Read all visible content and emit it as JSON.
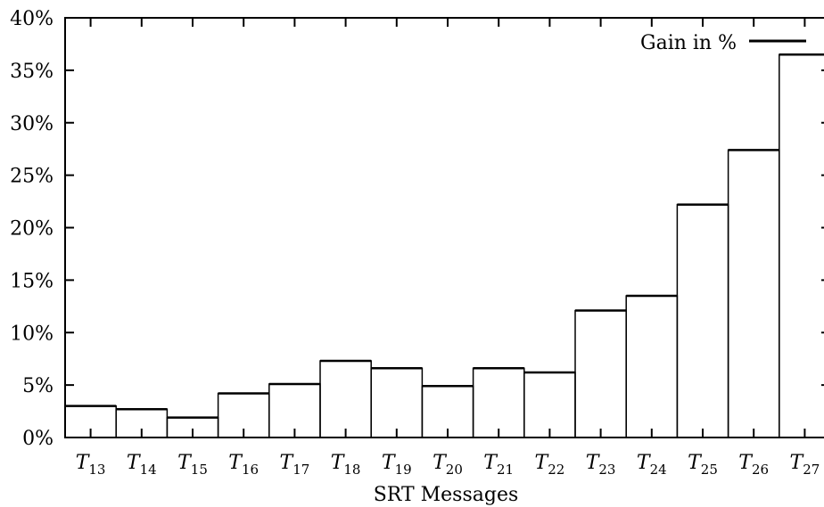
{
  "chart_data": {
    "type": "bar",
    "categories": [
      "T13",
      "T14",
      "T15",
      "T16",
      "T17",
      "T18",
      "T19",
      "T20",
      "T21",
      "T22",
      "T23",
      "T24",
      "T25",
      "T26",
      "T27"
    ],
    "category_labels": [
      {
        "base": "T",
        "sub": "13"
      },
      {
        "base": "T",
        "sub": "14"
      },
      {
        "base": "T",
        "sub": "15"
      },
      {
        "base": "T",
        "sub": "16"
      },
      {
        "base": "T",
        "sub": "17"
      },
      {
        "base": "T",
        "sub": "18"
      },
      {
        "base": "T",
        "sub": "19"
      },
      {
        "base": "T",
        "sub": "20"
      },
      {
        "base": "T",
        "sub": "21"
      },
      {
        "base": "T",
        "sub": "22"
      },
      {
        "base": "T",
        "sub": "23"
      },
      {
        "base": "T",
        "sub": "24"
      },
      {
        "base": "T",
        "sub": "25"
      },
      {
        "base": "T",
        "sub": "26"
      },
      {
        "base": "T",
        "sub": "27"
      }
    ],
    "series": [
      {
        "name": "Gain in %",
        "values": [
          3.0,
          2.7,
          1.9,
          4.2,
          5.1,
          7.3,
          6.6,
          4.9,
          6.6,
          6.2,
          12.1,
          13.5,
          22.2,
          27.4,
          36.5
        ]
      }
    ],
    "xlabel": "SRT Messages",
    "ylabel": "",
    "ylim": [
      0,
      40
    ],
    "yticks": [
      0,
      5,
      10,
      15,
      20,
      25,
      30,
      35,
      40
    ],
    "ytick_labels": [
      "0%",
      "5%",
      "10%",
      "15%",
      "20%",
      "25%",
      "30%",
      "35%",
      "40%"
    ],
    "legend_position": "top-right",
    "grid": false
  }
}
